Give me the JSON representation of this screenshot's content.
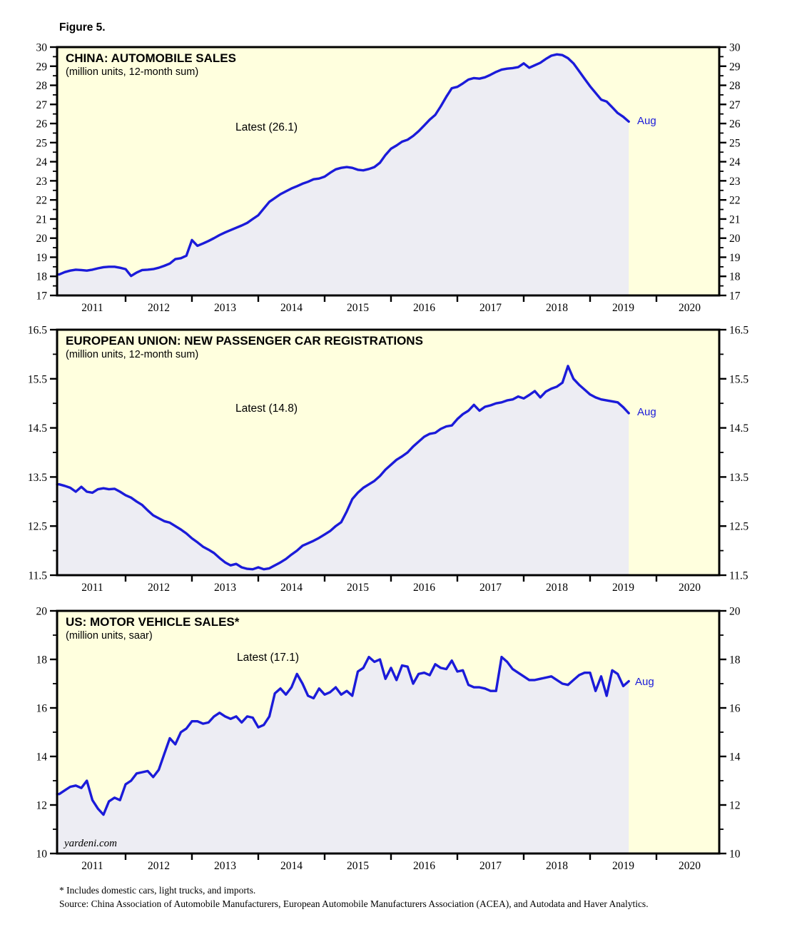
{
  "figure_label": "Figure 5.",
  "colors": {
    "line": "#1b1bd9",
    "area": "#ededf3",
    "plot_bg": "#ffffde",
    "axis": "#000000"
  },
  "footnotes": [
    "* Includes domestic cars, light trucks, and imports.",
    "Source: China Association of Automobile Manufacturers, European Automobile Manufacturers Association (ACEA), and Autodata and Haver Analytics."
  ],
  "chart_data": [
    {
      "id": "china-automobile-sales",
      "type": "line",
      "title": "CHINA: AUTOMOBILE SALES",
      "subtitle": "(million units, 12-month sum)",
      "latest_label": "Latest (26.1)",
      "end_label": "Aug",
      "ylim": [
        17,
        30
      ],
      "y_tick_values": [
        17,
        18,
        19,
        20,
        21,
        22,
        23,
        24,
        25,
        26,
        27,
        28,
        29,
        30
      ],
      "y_tick_labels": [
        "17",
        "18",
        "19",
        "20",
        "21",
        "22",
        "23",
        "24",
        "25",
        "26",
        "27",
        "28",
        "29",
        "30"
      ],
      "y_minor_ticks": [
        17.5,
        18.5,
        19.5,
        20.5,
        21.5,
        22.5,
        23.5,
        24.5,
        25.5,
        26.5,
        27.5,
        28.5,
        29.5
      ],
      "x_tick_years": [
        2011,
        2012,
        2013,
        2014,
        2015,
        2016,
        2017,
        2018,
        2019,
        2020
      ],
      "x_year_labels": [
        "2011",
        "2012",
        "2013",
        "2014",
        "2015",
        "2016",
        "2017",
        "2018",
        "2019",
        "2020"
      ],
      "start_year": 2011,
      "points_per_year": 12,
      "values": [
        18.1,
        18.22,
        18.3,
        18.35,
        18.33,
        18.3,
        18.35,
        18.42,
        18.48,
        18.5,
        18.5,
        18.45,
        18.38,
        18.02,
        18.2,
        18.33,
        18.35,
        18.38,
        18.45,
        18.55,
        18.67,
        18.9,
        18.95,
        19.08,
        19.9,
        19.6,
        19.72,
        19.85,
        20.0,
        20.16,
        20.3,
        20.42,
        20.54,
        20.66,
        20.8,
        21.0,
        21.2,
        21.55,
        21.9,
        22.1,
        22.3,
        22.45,
        22.6,
        22.72,
        22.85,
        22.95,
        23.08,
        23.12,
        23.22,
        23.42,
        23.6,
        23.68,
        23.72,
        23.68,
        23.58,
        23.55,
        23.62,
        23.72,
        23.95,
        24.35,
        24.68,
        24.85,
        25.05,
        25.15,
        25.35,
        25.6,
        25.9,
        26.2,
        26.45,
        26.9,
        27.4,
        27.85,
        27.92,
        28.1,
        28.3,
        28.38,
        28.35,
        28.42,
        28.55,
        28.7,
        28.82,
        28.87,
        28.9,
        28.95,
        29.15,
        28.92,
        29.05,
        29.18,
        29.38,
        29.55,
        29.62,
        29.58,
        29.42,
        29.15,
        28.75,
        28.35,
        27.95,
        27.6,
        27.25,
        27.15,
        26.85,
        26.55,
        26.35,
        26.1
      ]
    },
    {
      "id": "eu-new-passenger-car-registrations",
      "type": "line",
      "title": "EUROPEAN UNION: NEW PASSENGER CAR REGISTRATIONS",
      "subtitle": "(million units, 12-month sum)",
      "latest_label": "Latest (14.8)",
      "end_label": "Aug",
      "ylim": [
        11.5,
        16.5
      ],
      "y_tick_values": [
        11.5,
        12.5,
        13.5,
        14.5,
        15.5,
        16.5
      ],
      "y_tick_labels": [
        "11.5",
        "12.5",
        "13.5",
        "14.5",
        "15.5",
        "16.5"
      ],
      "y_minor_ticks": [
        12,
        13,
        14,
        15,
        16
      ],
      "x_tick_years": [
        2011,
        2012,
        2013,
        2014,
        2015,
        2016,
        2017,
        2018,
        2019,
        2020
      ],
      "x_year_labels": [
        "2011",
        "2012",
        "2013",
        "2014",
        "2015",
        "2016",
        "2017",
        "2018",
        "2019",
        "2020"
      ],
      "start_year": 2011,
      "points_per_year": 12,
      "values": [
        13.35,
        13.32,
        13.28,
        13.2,
        13.3,
        13.2,
        13.18,
        13.25,
        13.27,
        13.25,
        13.26,
        13.2,
        13.13,
        13.08,
        13.0,
        12.93,
        12.82,
        12.72,
        12.66,
        12.6,
        12.57,
        12.5,
        12.43,
        12.35,
        12.25,
        12.17,
        12.08,
        12.02,
        11.95,
        11.85,
        11.76,
        11.7,
        11.73,
        11.66,
        11.63,
        11.62,
        11.66,
        11.62,
        11.64,
        11.7,
        11.76,
        11.83,
        11.92,
        12.0,
        12.1,
        12.15,
        12.2,
        12.26,
        12.33,
        12.4,
        12.5,
        12.58,
        12.8,
        13.05,
        13.18,
        13.28,
        13.35,
        13.42,
        13.52,
        13.65,
        13.75,
        13.85,
        13.92,
        14.0,
        14.12,
        14.22,
        14.32,
        14.38,
        14.4,
        14.48,
        14.53,
        14.55,
        14.68,
        14.78,
        14.85,
        14.97,
        14.85,
        14.93,
        14.96,
        15.0,
        15.02,
        15.06,
        15.08,
        15.14,
        15.1,
        15.17,
        15.25,
        15.12,
        15.24,
        15.3,
        15.34,
        15.42,
        15.76,
        15.5,
        15.38,
        15.28,
        15.18,
        15.12,
        15.08,
        15.06,
        15.04,
        15.02,
        14.92,
        14.8
      ]
    },
    {
      "id": "us-motor-vehicle-sales",
      "type": "line",
      "title": "US: MOTOR VEHICLE SALES*",
      "subtitle": "(million units, saar)",
      "latest_label": "Latest (17.1)",
      "end_label": "Aug",
      "watermark": "yardeni.com",
      "ylim": [
        10,
        20
      ],
      "y_tick_values": [
        10,
        12,
        14,
        16,
        18,
        20
      ],
      "y_tick_labels": [
        "10",
        "12",
        "14",
        "16",
        "18",
        "20"
      ],
      "y_minor_ticks": [
        11,
        13,
        15,
        17,
        19
      ],
      "x_tick_years": [
        2011,
        2012,
        2013,
        2014,
        2015,
        2016,
        2017,
        2018,
        2019,
        2020
      ],
      "x_year_labels": [
        "2011",
        "2012",
        "2013",
        "2014",
        "2015",
        "2016",
        "2017",
        "2018",
        "2019",
        "2020"
      ],
      "start_year": 2011,
      "points_per_year": 12,
      "values": [
        12.45,
        12.6,
        12.75,
        12.8,
        12.7,
        13.0,
        12.2,
        11.85,
        11.6,
        12.15,
        12.3,
        12.2,
        12.85,
        13.0,
        13.3,
        13.35,
        13.4,
        13.15,
        13.45,
        14.1,
        14.75,
        14.5,
        15.0,
        15.15,
        15.45,
        15.45,
        15.35,
        15.4,
        15.65,
        15.8,
        15.65,
        15.55,
        15.65,
        15.4,
        15.65,
        15.6,
        15.2,
        15.3,
        15.65,
        16.6,
        16.8,
        16.55,
        16.85,
        17.4,
        17.0,
        16.5,
        16.4,
        16.8,
        16.55,
        16.65,
        16.85,
        16.55,
        16.7,
        16.5,
        17.5,
        17.65,
        18.1,
        17.9,
        18.0,
        17.2,
        17.65,
        17.15,
        17.75,
        17.7,
        17.0,
        17.4,
        17.45,
        17.35,
        17.8,
        17.65,
        17.6,
        17.95,
        17.5,
        17.55,
        16.95,
        16.85,
        16.85,
        16.8,
        16.7,
        16.7,
        18.1,
        17.9,
        17.6,
        17.45,
        17.3,
        17.15,
        17.15,
        17.2,
        17.25,
        17.3,
        17.15,
        17.0,
        16.95,
        17.15,
        17.35,
        17.45,
        17.45,
        16.7,
        17.3,
        16.5,
        17.55,
        17.4,
        16.9,
        17.1
      ]
    }
  ]
}
